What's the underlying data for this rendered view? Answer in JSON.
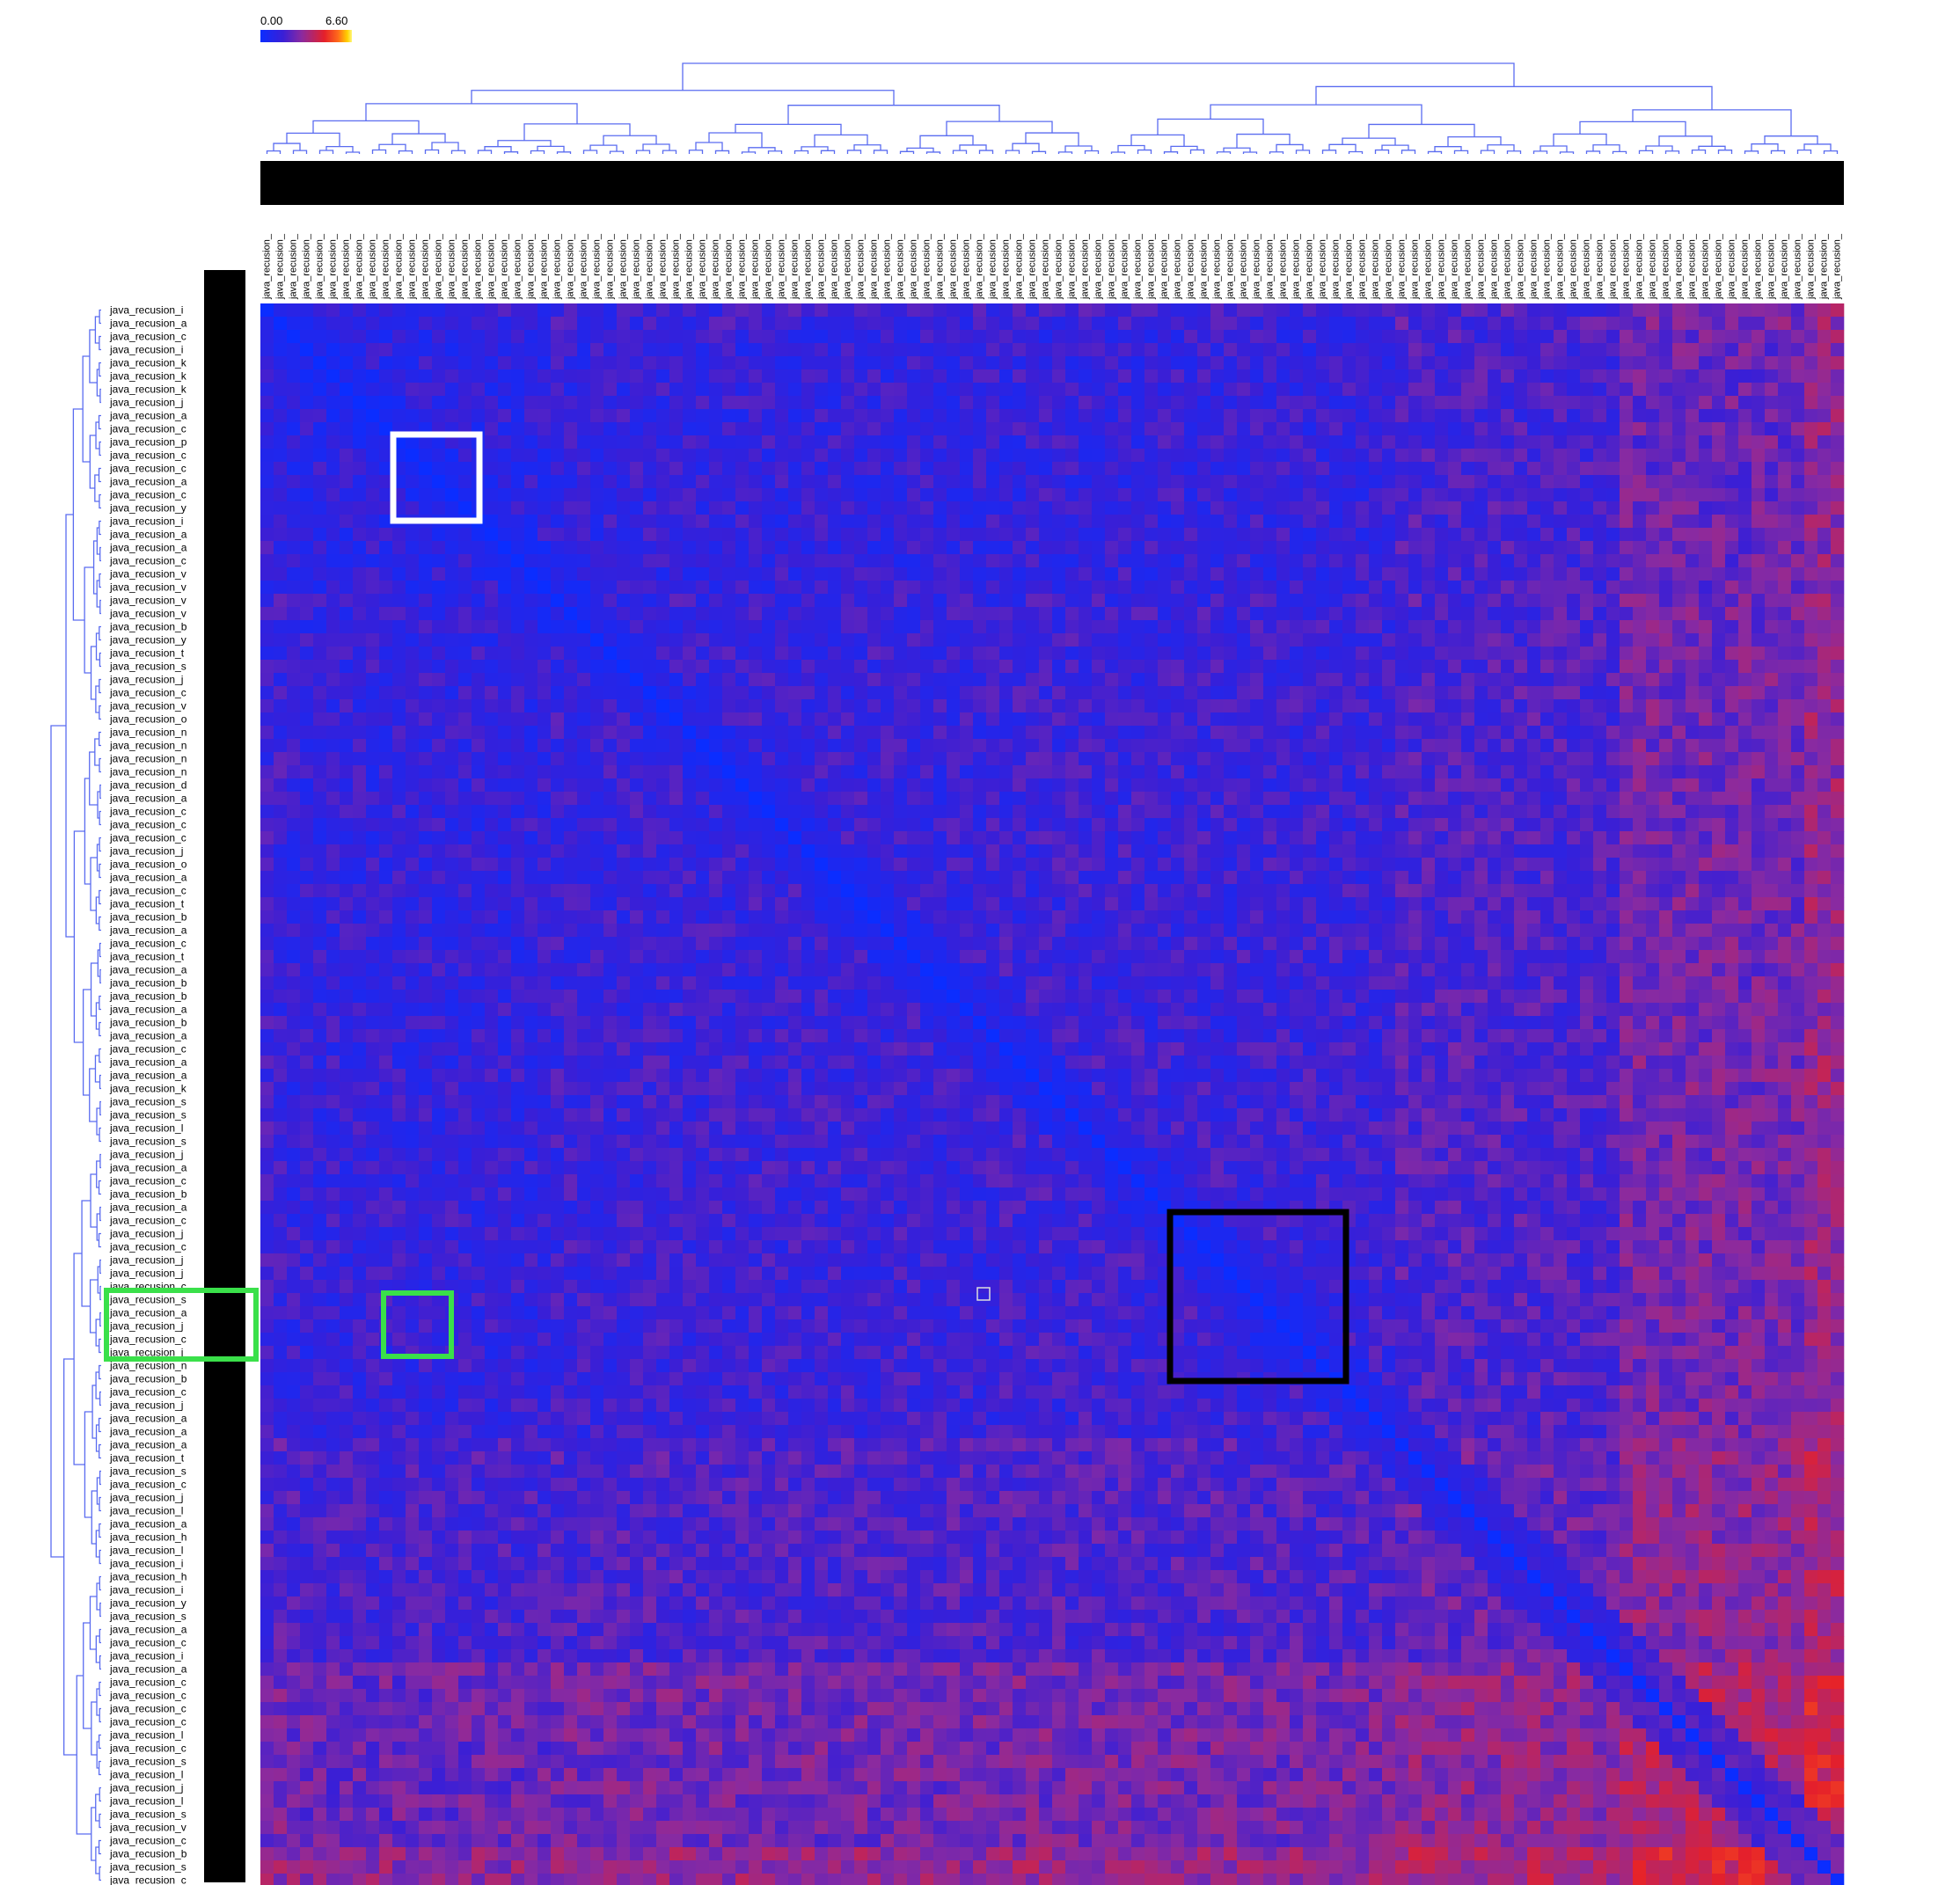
{
  "legend": {
    "min_label": "0.00",
    "max_label": "6.60",
    "colors": [
      "#0b2dff",
      "#3a1fd6",
      "#8a2aa0",
      "#e5202a",
      "#ff6a1a",
      "#ffd000",
      "#fff87a"
    ]
  },
  "chart_data": {
    "type": "heatmap",
    "title": "",
    "value_range": [
      0.0,
      6.6
    ],
    "matrix_size": 120,
    "diagonal_value": 0.0,
    "dendrogram_color": "#5a6cf0",
    "label_prefix": "java_recusion_",
    "row_label_fragments": [
      "i",
      "a",
      "c",
      "i",
      "k",
      "k",
      "k",
      "j",
      "a",
      "c",
      "p",
      "c",
      "c",
      "a",
      "c",
      "y",
      "i",
      "a",
      "a",
      "c",
      "v",
      "v",
      "v",
      "v",
      "b",
      "y",
      "t",
      "s",
      "j",
      "c",
      "v",
      "o",
      "n",
      "n",
      "n",
      "n",
      "d",
      "a",
      "c",
      "c",
      "c",
      "j",
      "o",
      "a",
      "c",
      "t",
      "b",
      "a",
      "c",
      "t",
      "a",
      "b",
      "b",
      "a",
      "b",
      "a",
      "c",
      "a",
      "a",
      "k",
      "s",
      "s",
      "l",
      "s",
      "j",
      "a",
      "c",
      "b",
      "a",
      "c",
      "j",
      "c",
      "j",
      "j",
      "c",
      "s",
      "a",
      "j",
      "c",
      "j",
      "n",
      "b",
      "c",
      "j",
      "a",
      "a",
      "a",
      "t",
      "s",
      "c",
      "j",
      "l",
      "a",
      "h",
      "l",
      "i",
      "h",
      "i",
      "y",
      "s",
      "a",
      "c",
      "i",
      "a",
      "c",
      "c",
      "c",
      "c",
      "l",
      "c",
      "s",
      "l",
      "j",
      "l",
      "s",
      "v",
      "c",
      "b",
      "s",
      "c"
    ],
    "annotations": [
      {
        "name": "highlight-white",
        "color": "#ffffff"
      },
      {
        "name": "highlight-green",
        "color": "#3ae04a"
      },
      {
        "name": "highlight-black",
        "color": "#000000"
      },
      {
        "name": "highlight-green-rows",
        "color": "#3ae04a"
      }
    ],
    "region_values": [
      {
        "region": "upper-left cluster",
        "approx": 1.8
      },
      {
        "region": "right column clusters",
        "approx": 5.0
      },
      {
        "region": "bottom row clusters",
        "approx": 5.0
      },
      {
        "region": "far-right / bottom edge",
        "approx": 6.2
      }
    ]
  }
}
